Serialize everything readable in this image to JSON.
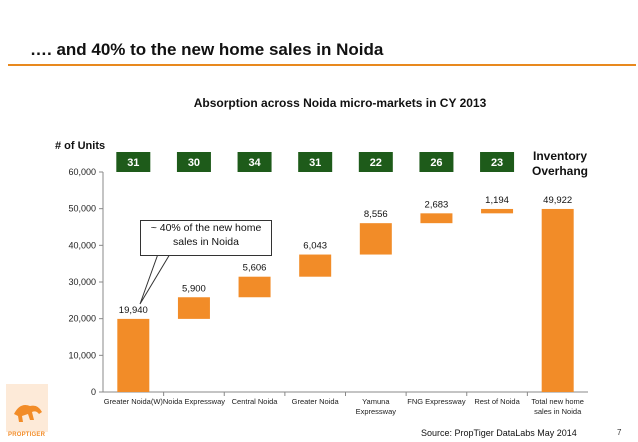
{
  "slide": {
    "title": "…. and 40% to the new home sales in Noida",
    "source": "Source: PropTiger DataLabs May 2014",
    "page_number": "7",
    "logo_text": "PROPTIGER"
  },
  "colors": {
    "accent": "#f28c28",
    "rule": "#e8891e",
    "badge": "#1e5b1a"
  },
  "chart_data": {
    "type": "bar",
    "subtype": "waterfall",
    "title": "Absorption across Noida micro-markets in CY 2013",
    "ylabel": "# of Units",
    "ylim": [
      0,
      60000
    ],
    "yticks": [
      "0",
      "10,000",
      "20,000",
      "30,000",
      "40,000",
      "50,000",
      "60,000"
    ],
    "grid": false,
    "categories": [
      "Greater Noida(W)",
      "Noida Expressway",
      "Central Noida",
      "Greater Noida",
      "Yamuna Expressway",
      "FNG Expressway",
      "Rest of Noida",
      "Total new home sales in Noida"
    ],
    "values": [
      19940,
      5900,
      5606,
      6043,
      8556,
      2683,
      1194,
      49922
    ],
    "value_labels": [
      "19,940",
      "5,900",
      "5,606",
      "6,043",
      "8,556",
      "2,683",
      "1,194",
      "49,922"
    ],
    "inventory_overhang": {
      "title": "Inventory Overhang",
      "values": [
        "31",
        "30",
        "34",
        "31",
        "22",
        "26",
        "23"
      ]
    },
    "annotation": "~ 40% of the new home sales in Noida"
  }
}
